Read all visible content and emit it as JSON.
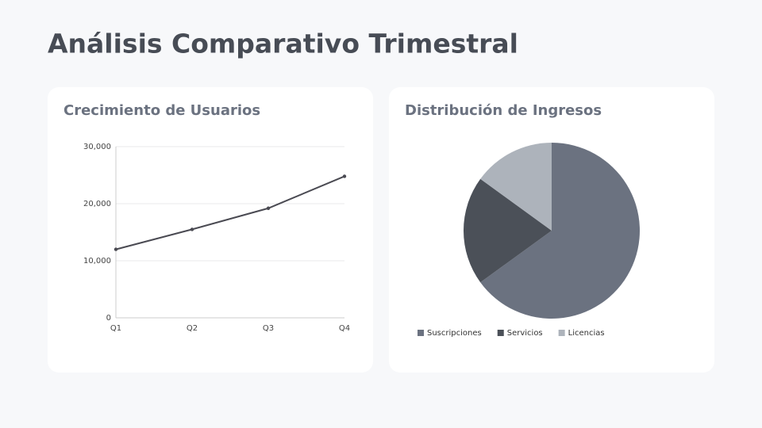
{
  "title": "Análisis Comparativo Trimestral",
  "chart_data": [
    {
      "type": "line",
      "title": "Crecimiento de Usuarios",
      "categories": [
        "Q1",
        "Q2",
        "Q3",
        "Q4"
      ],
      "values": [
        12000,
        15500,
        19200,
        24800
      ],
      "color": "#4a4a52",
      "ylim": [
        0,
        30000
      ],
      "yticks": [
        0,
        {
          "value": 10000,
          "label": "10,000"
        },
        {
          "value": 20000,
          "label": "20,000"
        },
        {
          "value": 30000,
          "label": "30,000"
        }
      ],
      "grid": true
    },
    {
      "type": "pie",
      "title": "Distribución de Ingresos",
      "categories": [
        "Suscripciones",
        "Servicios",
        "Licencias"
      ],
      "values": [
        65,
        20,
        15
      ],
      "colors": [
        "#6b7280",
        "#4b5058",
        "#adb3bb"
      ],
      "legend": "bottom"
    }
  ]
}
